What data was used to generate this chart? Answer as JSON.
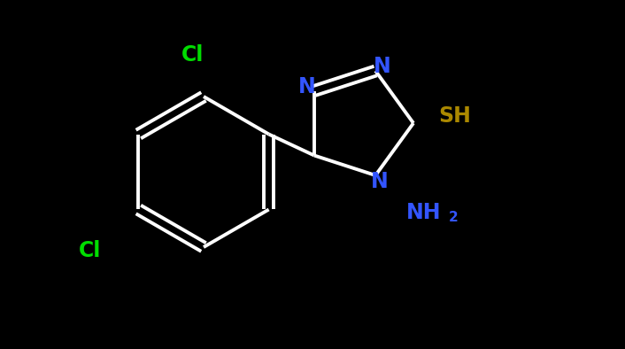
{
  "background_color": "#000000",
  "bond_color": "#ffffff",
  "bond_width": 2.8,
  "atom_colors": {
    "N": "#3355ff",
    "Cl": "#00dd00",
    "S": "#aa8800",
    "NH2": "#3355ff"
  },
  "figsize": [
    7.06,
    3.94
  ],
  "dpi": 100,
  "xlim": [
    0,
    7.06
  ],
  "ylim": [
    0,
    3.94
  ]
}
